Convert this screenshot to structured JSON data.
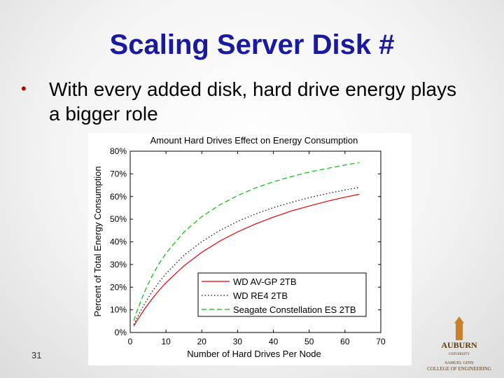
{
  "slide": {
    "title": "Scaling Server Disk #",
    "bullet": "With every added disk, hard drive energy plays a bigger role",
    "page_number": "31",
    "logo": {
      "name": "AUBURN",
      "sub": "UNIVERSITY",
      "college_line1": "SAMUEL GINN",
      "college_line2": "COLLEGE OF ENGINEERING"
    }
  },
  "chart_data": {
    "type": "line",
    "title": "Amount Hard Drives Effect on Energy Consumption",
    "x_label": "Number of Hard Drives Per Node",
    "y_label": "Percent of Total Energy Consumption",
    "x": [
      1,
      2,
      4,
      6,
      8,
      10,
      15,
      20,
      25,
      30,
      35,
      40,
      45,
      50,
      55,
      60,
      64
    ],
    "series": [
      {
        "name": "WD AV-GP 2TB",
        "color": "#e00000",
        "dash": "solid",
        "values": [
          2.8,
          5.5,
          10.3,
          14.6,
          18.5,
          22.0,
          29.4,
          35.4,
          40.3,
          44.4,
          47.9,
          50.9,
          53.6,
          55.8,
          57.9,
          59.7,
          61.0
        ]
      },
      {
        "name": "WD RE4 2TB",
        "color": "#000000",
        "dash": "dotted",
        "values": [
          3.5,
          6.8,
          12.6,
          17.7,
          22.1,
          26.0,
          34.0,
          40.1,
          45.0,
          49.0,
          52.3,
          55.1,
          57.4,
          59.5,
          61.3,
          62.9,
          64.0
        ]
      },
      {
        "name": "Seagate Constellation ES 2TB",
        "color": "#00c000",
        "dash": "dashed",
        "values": [
          5.2,
          9.9,
          17.9,
          24.6,
          30.2,
          35.0,
          44.3,
          51.1,
          56.3,
          60.4,
          63.8,
          66.5,
          68.8,
          70.8,
          72.4,
          73.9,
          75.0
        ]
      }
    ],
    "xlim": [
      0,
      70
    ],
    "xticks": [
      0,
      10,
      20,
      30,
      40,
      50,
      60,
      70
    ],
    "ylim": [
      0,
      80
    ],
    "yticks": [
      {
        "value": 0,
        "label": "0%"
      },
      {
        "value": 10,
        "label": "10%"
      },
      {
        "value": 20,
        "label": "20%"
      },
      {
        "value": 30,
        "label": "30%"
      },
      {
        "value": 40,
        "label": "40%"
      },
      {
        "value": 50,
        "label": "50%"
      },
      {
        "value": 60,
        "label": "60%"
      },
      {
        "value": 70,
        "label": "70%"
      },
      {
        "value": 80,
        "label": "80%"
      }
    ],
    "legend": "lower-right",
    "grid": false
  }
}
